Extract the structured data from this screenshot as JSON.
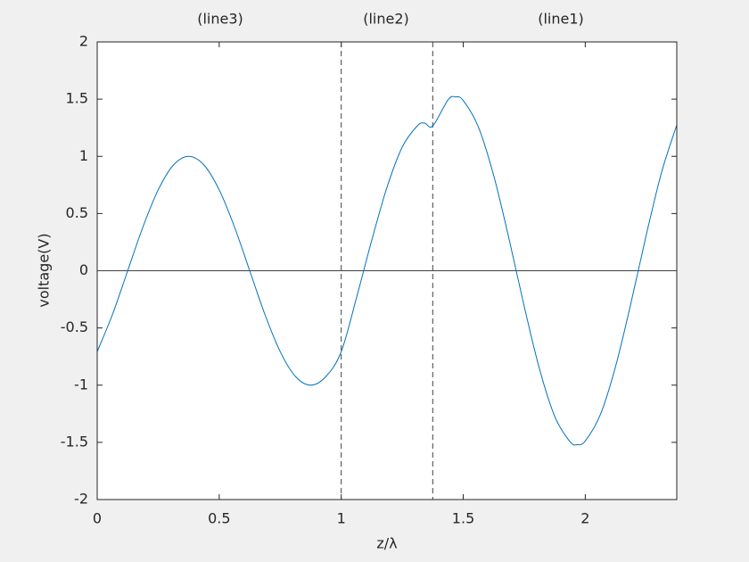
{
  "chart_data": {
    "type": "line",
    "xlabel": "z/λ",
    "ylabel": "voltage(V)",
    "annotations": [
      "(line3)",
      "(line2)",
      "(line1)"
    ],
    "x": [
      0,
      0.0625,
      0.125,
      0.1875,
      0.25,
      0.3125,
      0.375,
      0.4375,
      0.5,
      0.5625,
      0.625,
      0.6875,
      0.75,
      0.8125,
      0.875,
      0.9375,
      1.0,
      1.0625,
      1.125,
      1.1875,
      1.25,
      1.3125,
      1.342,
      1.375,
      1.4375,
      1.467,
      1.5,
      1.5625,
      1.625,
      1.6875,
      1.75,
      1.8125,
      1.875,
      1.9375,
      1.967,
      2.0,
      2.0625,
      2.125,
      2.1875,
      2.25,
      2.3125,
      2.375
    ],
    "series": [
      {
        "color": "#0072bd",
        "values": [
          -0.707,
          -0.383,
          0,
          0.383,
          0.707,
          0.924,
          1,
          0.924,
          0.707,
          0.383,
          0,
          -0.383,
          -0.707,
          -0.924,
          -1,
          -0.924,
          -0.707,
          -0.237,
          0.266,
          0.729,
          1.081,
          1.268,
          1.29,
          1.265,
          1.494,
          1.52,
          1.488,
          1.254,
          0.83,
          0.28,
          -0.313,
          -0.859,
          -1.274,
          -1.494,
          -1.52,
          -1.488,
          -1.254,
          -0.83,
          -0.28,
          0.313,
          0.859,
          1.274
        ]
      }
    ],
    "vlines": [
      1,
      1.375
    ],
    "hlines": [
      0
    ],
    "xlim": [
      0,
      2.375
    ],
    "ylim": [
      -2,
      2
    ],
    "xticks": [
      0,
      0.5,
      1,
      1.5,
      2
    ],
    "yticks": [
      -2,
      -1.5,
      -1,
      -0.5,
      0,
      0.5,
      1,
      1.5,
      2
    ]
  }
}
